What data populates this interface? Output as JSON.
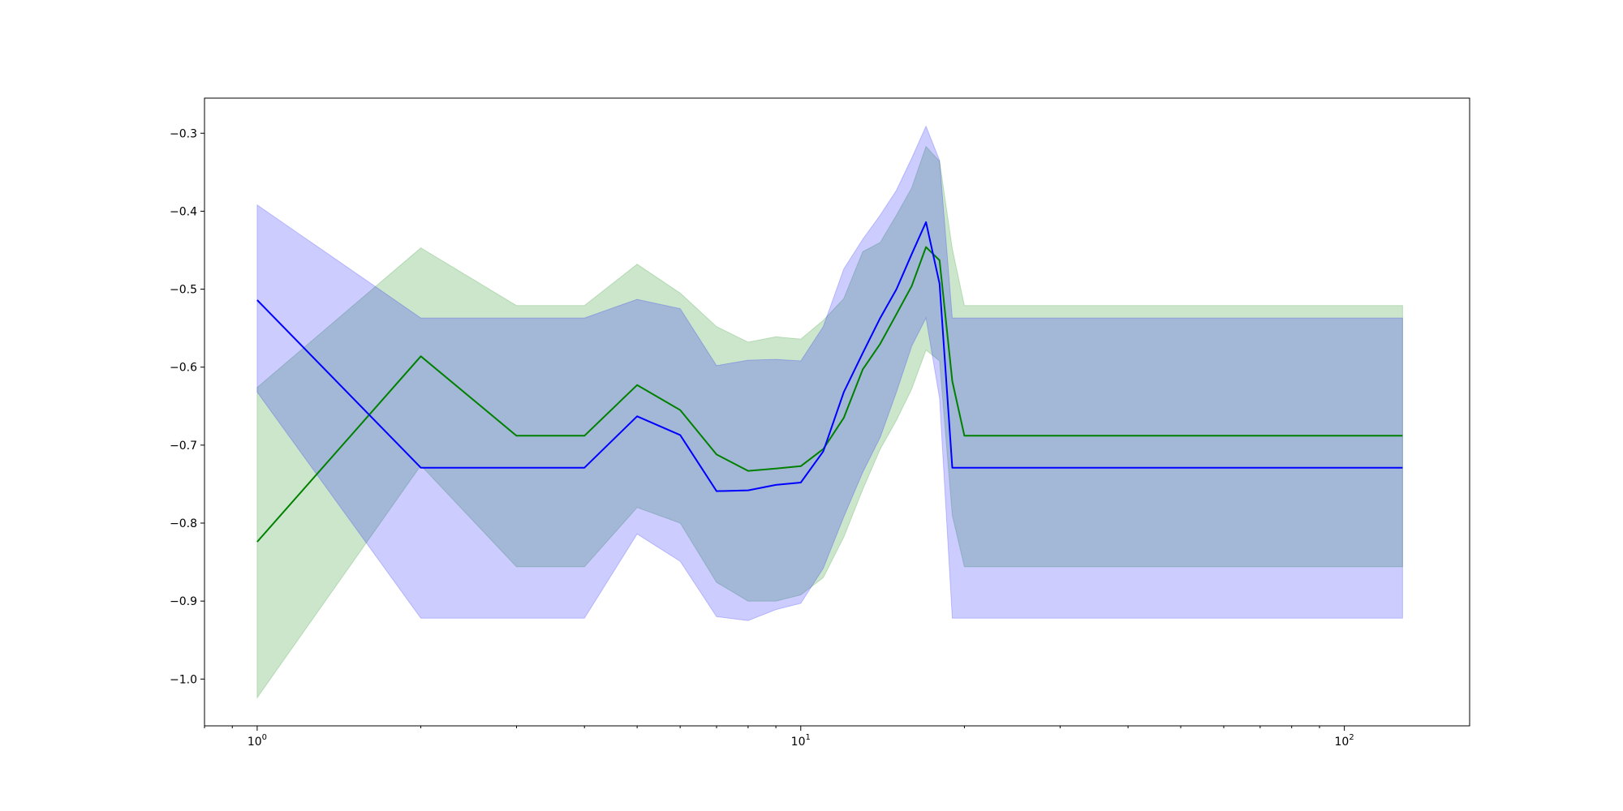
{
  "chart_data": {
    "type": "line",
    "title": "",
    "xlabel": "",
    "ylabel": "",
    "xscale": "log",
    "xlim": [
      0.8,
      170
    ],
    "ylim": [
      -1.06,
      -0.255
    ],
    "grid": false,
    "x_tick_labels": [
      {
        "value": 1,
        "base": "10",
        "exp": "0"
      },
      {
        "value": 10,
        "base": "10",
        "exp": "1"
      },
      {
        "value": 100,
        "base": "10",
        "exp": "2"
      }
    ],
    "y_ticks": [
      -1.0,
      -0.9,
      -0.8,
      -0.7,
      -0.6,
      -0.5,
      -0.4,
      -0.3
    ],
    "y_tick_labels": [
      "−1.0",
      "−0.9",
      "−0.8",
      "−0.7",
      "−0.6",
      "−0.5",
      "−0.4",
      "−0.3"
    ],
    "x": [
      1,
      2,
      3,
      4,
      5,
      6,
      7,
      8,
      9,
      10,
      11,
      12,
      13,
      14,
      15,
      16,
      17,
      18,
      19,
      20,
      128
    ],
    "series": [
      {
        "color": "#008000",
        "band_color": "#008000",
        "band_opacity": 0.2,
        "values": [
          -0.824,
          -0.586,
          -0.688,
          -0.688,
          -0.623,
          -0.655,
          -0.712,
          -0.733,
          -0.73,
          -0.727,
          -0.705,
          -0.665,
          -0.603,
          -0.57,
          -0.532,
          -0.496,
          -0.446,
          -0.463,
          -0.618,
          -0.688,
          -0.688
        ],
        "lower": [
          -1.024,
          -0.726,
          -0.856,
          -0.856,
          -0.78,
          -0.8,
          -0.876,
          -0.9,
          -0.9,
          -0.892,
          -0.87,
          -0.818,
          -0.757,
          -0.705,
          -0.668,
          -0.628,
          -0.578,
          -0.592,
          -0.79,
          -0.856,
          -0.856
        ],
        "upper": [
          -0.626,
          -0.447,
          -0.521,
          -0.521,
          -0.468,
          -0.505,
          -0.548,
          -0.568,
          -0.561,
          -0.564,
          -0.54,
          -0.512,
          -0.452,
          -0.44,
          -0.405,
          -0.37,
          -0.317,
          -0.336,
          -0.448,
          -0.521,
          -0.521
        ]
      },
      {
        "color": "#0000ff",
        "band_color": "#0000ff",
        "band_opacity": 0.2,
        "values": [
          -0.514,
          -0.729,
          -0.729,
          -0.729,
          -0.663,
          -0.687,
          -0.759,
          -0.758,
          -0.751,
          -0.748,
          -0.708,
          -0.632,
          -0.582,
          -0.537,
          -0.5,
          -0.455,
          -0.414,
          -0.493,
          -0.729,
          -0.729,
          -0.729
        ],
        "lower": [
          -0.632,
          -0.922,
          -0.922,
          -0.922,
          -0.814,
          -0.849,
          -0.92,
          -0.925,
          -0.911,
          -0.903,
          -0.858,
          -0.792,
          -0.735,
          -0.69,
          -0.632,
          -0.573,
          -0.537,
          -0.64,
          -0.922,
          -0.922,
          -0.922
        ],
        "upper": [
          -0.392,
          -0.537,
          -0.537,
          -0.537,
          -0.513,
          -0.525,
          -0.598,
          -0.591,
          -0.59,
          -0.592,
          -0.548,
          -0.474,
          -0.436,
          -0.405,
          -0.373,
          -0.332,
          -0.291,
          -0.335,
          -0.537,
          -0.537,
          -0.537
        ]
      }
    ]
  }
}
